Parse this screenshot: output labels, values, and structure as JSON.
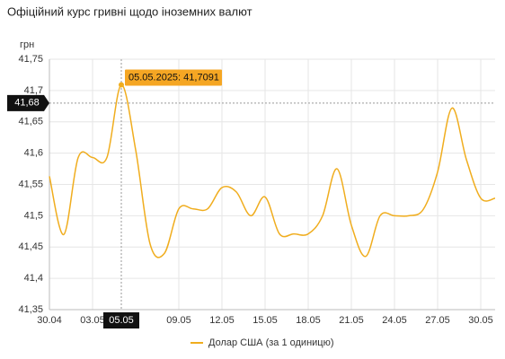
{
  "chart_data": {
    "type": "line",
    "title": "Офіційний курс гривні щодо іноземних валют",
    "y_unit": "грн",
    "x": [
      "30.04",
      "01.05",
      "02.05",
      "03.05",
      "04.05",
      "05.05",
      "06.05",
      "07.05",
      "08.05",
      "09.05",
      "10.05",
      "11.05",
      "12.05",
      "13.05",
      "14.05",
      "15.05",
      "16.05",
      "17.05",
      "18.05",
      "19.05",
      "20.05",
      "21.05",
      "22.05",
      "23.05",
      "24.05",
      "25.05",
      "26.05",
      "27.05",
      "28.05",
      "29.05",
      "30.05",
      "31.05"
    ],
    "xticks": [
      "30.04",
      "03.05",
      "09.05",
      "12.05",
      "15.05",
      "18.05",
      "21.05",
      "24.05",
      "27.05",
      "30.05"
    ],
    "series": [
      {
        "name": "Долар США (за 1 одиницю)",
        "color": "#f0ad1e",
        "values": [
          41.563,
          41.47,
          41.593,
          41.593,
          41.593,
          41.7091,
          41.605,
          41.455,
          41.44,
          41.511,
          41.511,
          41.511,
          41.545,
          41.538,
          41.5,
          41.53,
          41.471,
          41.471,
          41.471,
          41.5,
          41.575,
          41.485,
          41.435,
          41.5,
          41.5,
          41.5,
          41.51,
          41.57,
          41.672,
          41.59,
          41.528,
          41.528
        ]
      }
    ],
    "ylim": [
      41.35,
      41.75
    ],
    "yticks": [
      {
        "value": 41.35,
        "label": "41,35"
      },
      {
        "value": 41.4,
        "label": "41,4"
      },
      {
        "value": 41.45,
        "label": "41,45"
      },
      {
        "value": 41.5,
        "label": "41,5"
      },
      {
        "value": 41.55,
        "label": "41,55"
      },
      {
        "value": 41.6,
        "label": "41,6"
      },
      {
        "value": 41.65,
        "label": "41,65"
      },
      {
        "value": 41.7,
        "label": "41,7"
      },
      {
        "value": 41.75,
        "label": "41,75"
      }
    ],
    "grid": true,
    "highlight_index": 5,
    "tooltip": "05.05.2025: 41,7091",
    "crosshair_y": {
      "value": 41.68,
      "label": "41,68"
    },
    "legend": "bottom"
  }
}
